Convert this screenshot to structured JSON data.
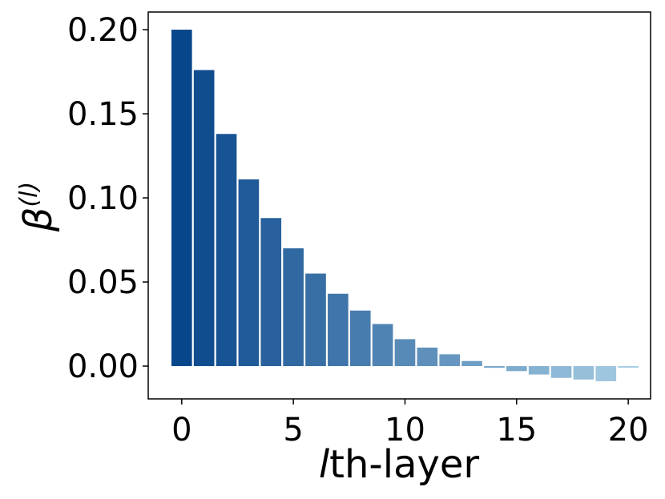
{
  "chart_data": {
    "type": "bar",
    "title": "",
    "xlabel_italic": "l",
    "xlabel_rest": "th-layer",
    "ylabel_base": "β",
    "ylabel_sup": "(l)",
    "x": [
      0,
      1,
      2,
      3,
      4,
      5,
      6,
      7,
      8,
      9,
      10,
      11,
      12,
      13,
      14,
      15,
      16,
      17,
      18,
      19,
      20
    ],
    "values": [
      0.2,
      0.176,
      0.138,
      0.111,
      0.088,
      0.07,
      0.055,
      0.043,
      0.033,
      0.025,
      0.016,
      0.011,
      0.007,
      0.003,
      -0.001,
      -0.003,
      -0.005,
      -0.007,
      -0.008,
      -0.009,
      -0.001
    ],
    "xlim": [
      -1.5,
      21.0
    ],
    "ylim": [
      -0.0195,
      0.2105
    ],
    "xticks": [
      0,
      5,
      10,
      15,
      20
    ],
    "xtick_labels": [
      "0",
      "5",
      "10",
      "15",
      "20"
    ],
    "yticks": [
      0.0,
      0.05,
      0.1,
      0.15,
      0.2
    ],
    "ytick_labels": [
      "0.00",
      "0.05",
      "0.10",
      "0.15",
      "0.20"
    ],
    "grid": false,
    "colormap": "blues-gradient-dark-to-light",
    "color_start": "#08468b",
    "color_end": "#a6cde3"
  }
}
